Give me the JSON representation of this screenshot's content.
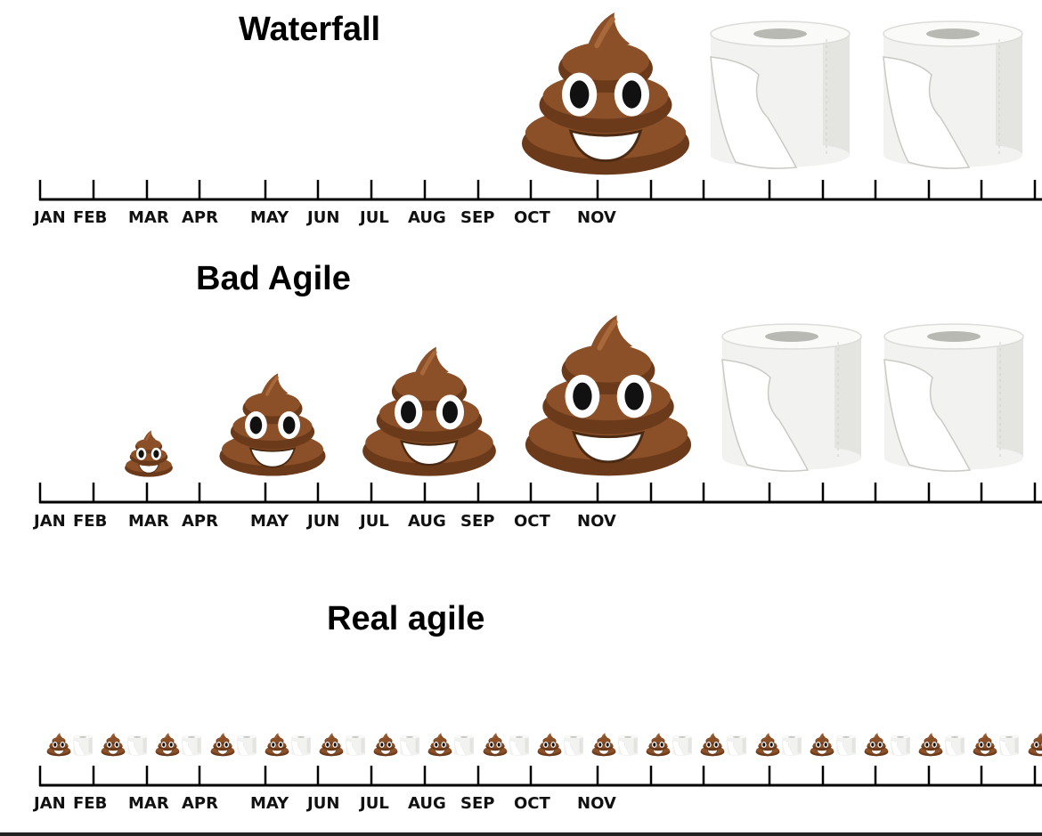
{
  "sections": [
    {
      "title": "Waterfall",
      "months": [
        "JAN",
        "FEB",
        "MAR",
        "APR",
        "MAY",
        "JUN",
        "JUL",
        "AUG",
        "SEP",
        "OCT",
        "NOV"
      ],
      "deliverables": [
        {
          "kind": "poop",
          "month_index": 9.5
        },
        {
          "kind": "toilet-paper",
          "month_index": 11.5
        },
        {
          "kind": "toilet-paper",
          "month_index": 14
        }
      ]
    },
    {
      "title": "Bad Agile",
      "months": [
        "JAN",
        "FEB",
        "MAR",
        "APR",
        "MAY",
        "JUN",
        "JUL",
        "AUG",
        "SEP",
        "OCT",
        "NOV"
      ],
      "deliverables": [
        {
          "kind": "poop",
          "month_index": 2,
          "relative_size": 0.28
        },
        {
          "kind": "poop",
          "month_index": 4.2,
          "relative_size": 0.65
        },
        {
          "kind": "poop",
          "month_index": 7,
          "relative_size": 0.82
        },
        {
          "kind": "poop",
          "month_index": 10,
          "relative_size": 1.0
        },
        {
          "kind": "toilet-paper",
          "month_index": 12
        },
        {
          "kind": "toilet-paper",
          "month_index": 14
        }
      ]
    },
    {
      "title": "Real agile",
      "months": [
        "JAN",
        "FEB",
        "MAR",
        "APR",
        "MAY",
        "JUN",
        "JUL",
        "AUG",
        "SEP",
        "OCT",
        "NOV"
      ],
      "deliverables_pattern": "poop + toilet-paper pair, repeated every tick",
      "pair_count": 19
    }
  ],
  "colors": {
    "poop_dark": "#6b3a1a",
    "poop_mid": "#8b5028",
    "poop_light": "#a9683a",
    "paper": "#f2f2f0",
    "paper_shade": "#d9d9d6",
    "axis": "#000000"
  }
}
